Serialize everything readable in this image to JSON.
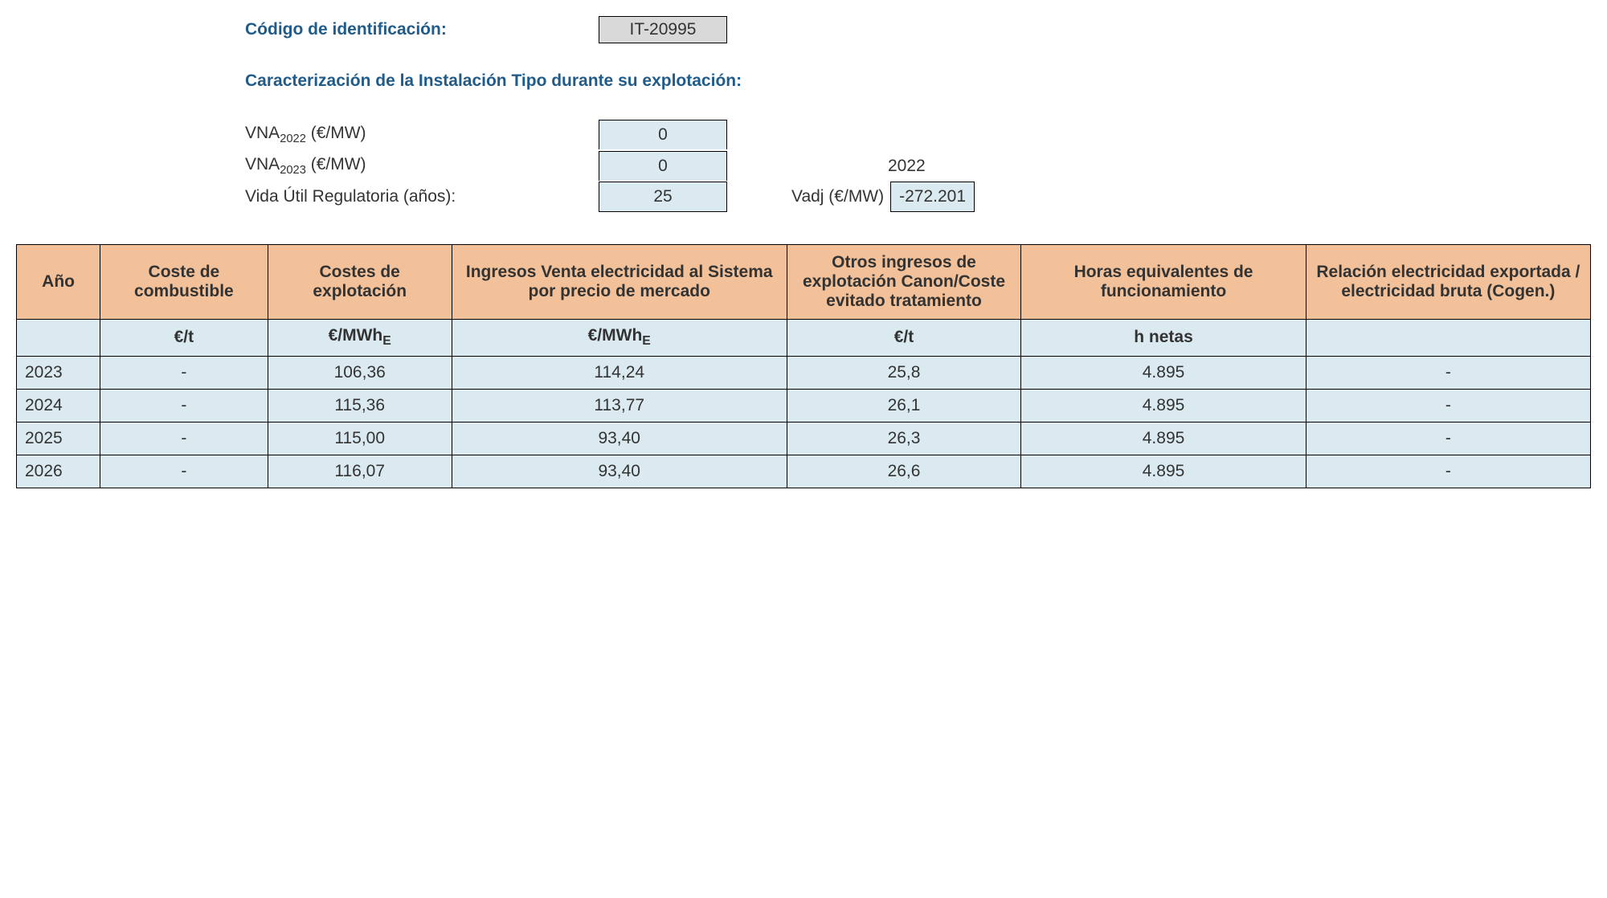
{
  "header": {
    "code_label": "Código de identificación:",
    "code_value": "IT-20995",
    "section_title": "Caracterización de la Instalación Tipo durante su explotación:",
    "vna2022_label_pre": "VNA",
    "vna2022_sub": "2022",
    "vna2022_label_post": " (€/MW)",
    "vna2022_value": "0",
    "vna2023_label_pre": "VNA",
    "vna2023_sub": "2023",
    "vna2023_label_post": " (€/MW)",
    "vna2023_value": "0",
    "year_right": "2022",
    "vida_label": "Vida Útil Regulatoria (años):",
    "vida_value": "25",
    "vadj_label": "Vadj (€/MW)",
    "vadj_value": "-272.201"
  },
  "table": {
    "headers": {
      "year": "Año",
      "fuel": "Coste de combustible",
      "costs": "Costes de explotación",
      "income": "Ingresos Venta electricidad al Sistema por precio de mercado",
      "other": "Otros ingresos de explotación Canon/Coste evitado tratamiento",
      "hours": "Horas equivalentes de funcionamiento",
      "ratio": "Relación electricidad exportada / electricidad bruta (Cogen.)"
    },
    "units": {
      "year": "",
      "fuel": "€/t",
      "costs_pre": "€/MWh",
      "costs_sub": "E",
      "income_pre": "€/MWh",
      "income_sub": "E",
      "other": "€/t",
      "hours": "h netas",
      "ratio": ""
    },
    "rows": [
      {
        "year": "2023",
        "fuel": "-",
        "costs": "106,36",
        "income": "114,24",
        "other": "25,8",
        "hours": "4.895",
        "ratio": "-"
      },
      {
        "year": "2024",
        "fuel": "-",
        "costs": "115,36",
        "income": "113,77",
        "other": "26,1",
        "hours": "4.895",
        "ratio": "-"
      },
      {
        "year": "2025",
        "fuel": "-",
        "costs": "115,00",
        "income": "93,40",
        "other": "26,3",
        "hours": "4.895",
        "ratio": "-"
      },
      {
        "year": "2026",
        "fuel": "-",
        "costs": "116,07",
        "income": "93,40",
        "other": "26,6",
        "hours": "4.895",
        "ratio": "-"
      }
    ]
  },
  "colors": {
    "header_bg": "#f2c19a",
    "cell_bg": "#daeaf0",
    "code_bg": "#d9d9d9",
    "title_color": "#1f5c8b",
    "border": "#000000"
  }
}
